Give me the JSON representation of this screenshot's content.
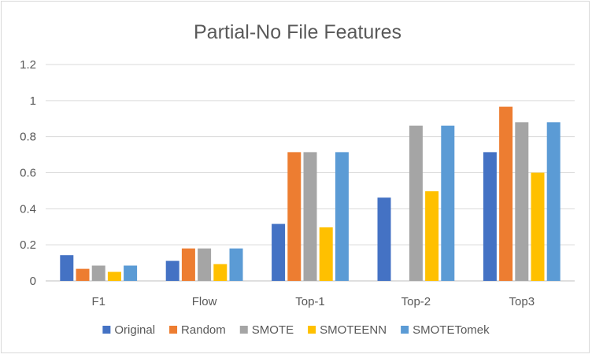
{
  "chart_data": {
    "type": "bar",
    "title": "Partial-No File Features",
    "xlabel": "",
    "ylabel": "",
    "categories": [
      "F1",
      "Flow",
      "Top-1",
      "Top-2",
      "Top3"
    ],
    "ylim": [
      0,
      1.2
    ],
    "yticks": [
      "0",
      "0.2",
      "0.4",
      "0.6",
      "0.8",
      "1",
      "1.2"
    ],
    "grid": true,
    "legend_position": "bottom",
    "series": [
      {
        "name": "Original",
        "color": "#4472C4",
        "values": [
          0.143,
          0.111,
          0.316,
          0.462,
          0.714
        ]
      },
      {
        "name": "Random",
        "color": "#ED7D31",
        "values": [
          0.067,
          0.18,
          0.714,
          0,
          0.966
        ]
      },
      {
        "name": "SMOTE",
        "color": "#A5A5A5",
        "values": [
          0.085,
          0.18,
          0.714,
          0.861,
          0.88
        ]
      },
      {
        "name": "SMOTEENN",
        "color": "#FFC000",
        "values": [
          0.05,
          0.093,
          0.297,
          0.497,
          0.6
        ]
      },
      {
        "name": "SMOTETomek",
        "color": "#5B9BD5",
        "values": [
          0.085,
          0.18,
          0.714,
          0.861,
          0.88
        ]
      }
    ]
  }
}
